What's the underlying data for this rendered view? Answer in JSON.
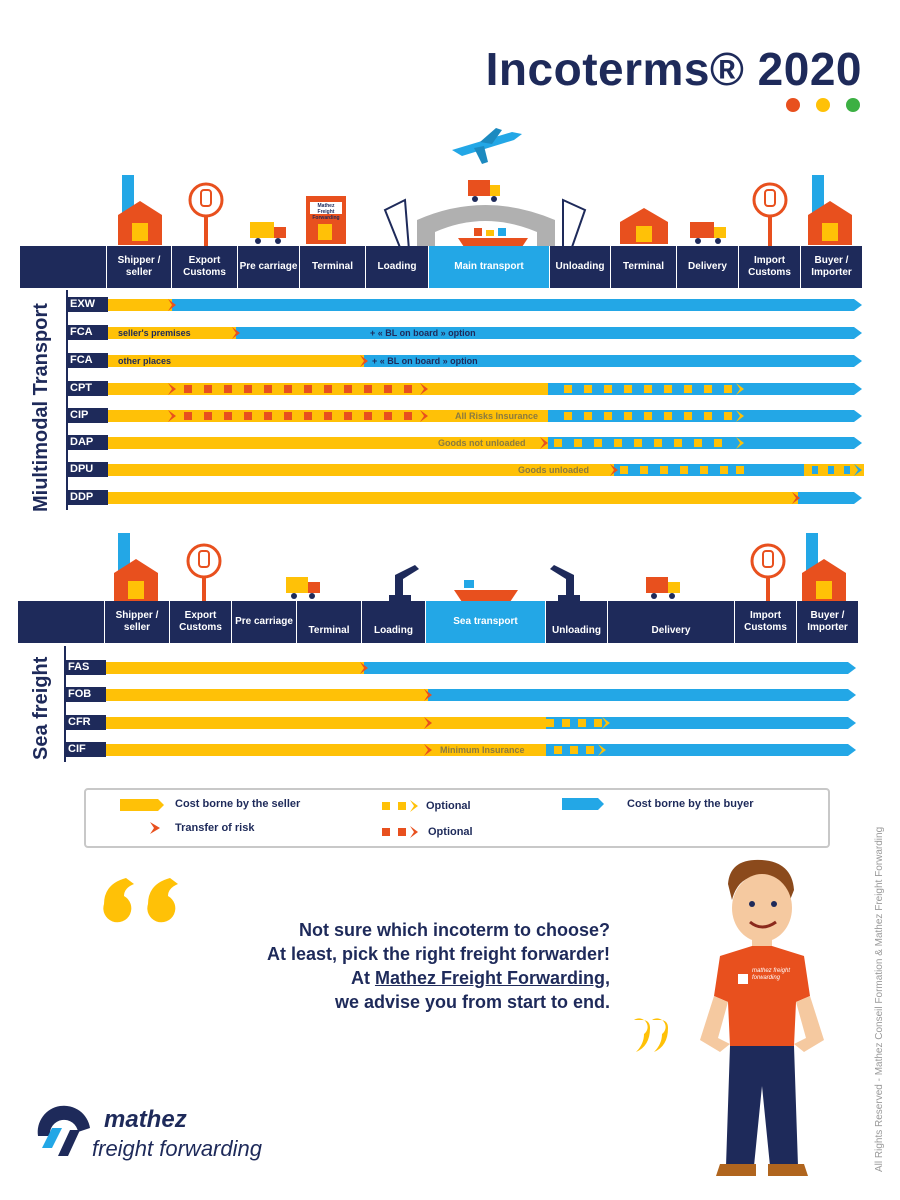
{
  "title": "Incoterms® 2020",
  "colors": {
    "navy": "#1e2a5a",
    "seller": "#ffc107",
    "buyer": "#23a7e6",
    "risk": "#e8501e",
    "dot_red": "#e8501e",
    "dot_yellow": "#ffc107",
    "dot_green": "#3cb043"
  },
  "multimodal": {
    "side_title": "Miultimodal Transport",
    "headers": [
      "Shipper / seller",
      "Export Customs",
      "Pre carriage",
      "Terminal",
      "Loading",
      "Main transport",
      "Unloading",
      "Terminal",
      "Delivery",
      "Import Customs",
      "Buyer / Importer"
    ],
    "rows": [
      {
        "code": "EXW",
        "annotation": "",
        "annotation2": ""
      },
      {
        "code": "FCA",
        "annotation": "seller's premises",
        "annotation2": "+ « BL on board » option"
      },
      {
        "code": "FCA",
        "annotation": "other places",
        "annotation2": "+ « BL on board » option"
      },
      {
        "code": "CPT",
        "annotation": "",
        "annotation2": ""
      },
      {
        "code": "CIP",
        "annotation": "All Risks Insurance",
        "annotation2": ""
      },
      {
        "code": "DAP",
        "annotation": "Goods not unloaded",
        "annotation2": ""
      },
      {
        "code": "DPU",
        "annotation": "Goods unloaded",
        "annotation2": ""
      },
      {
        "code": "DDP",
        "annotation": "",
        "annotation2": ""
      }
    ]
  },
  "sea": {
    "side_title": "Sea freight",
    "headers": [
      "Shipper / seller",
      "Export Customs",
      "Pre carriage",
      "Terminal",
      "Loading",
      "Sea transport",
      "Unloading",
      "Delivery",
      "Import Customs",
      "Buyer / Importer"
    ],
    "rows": [
      {
        "code": "FAS",
        "annotation": ""
      },
      {
        "code": "FOB",
        "annotation": ""
      },
      {
        "code": "CFR",
        "annotation": ""
      },
      {
        "code": "CIF",
        "annotation": "Minimum Insurance"
      }
    ]
  },
  "legend": {
    "seller": "Cost borne by the seller",
    "risk": "Transfer of risk",
    "optional_yellow": "Optional",
    "optional_red": "Optional",
    "buyer": "Cost borne by the buyer"
  },
  "quote": {
    "line1": "Not sure which incoterm to choose?",
    "line2": "At least, pick the right freight forwarder!",
    "line3_pre": "At ",
    "line3_link": "Mathez Freight Forwarding",
    "line3_post": ",",
    "line4": "we advise you from start to end."
  },
  "icons": {
    "terminal_sign": "Mathez Freight Forwarding",
    "shirt_logo": "mathez freight forwarding"
  },
  "logo": {
    "line1": "mathez",
    "line2": "freight forwarding"
  },
  "rights": "All Rights Reserved -  Mathez Conseil Formation  &  Mathez Freight Forwarding"
}
